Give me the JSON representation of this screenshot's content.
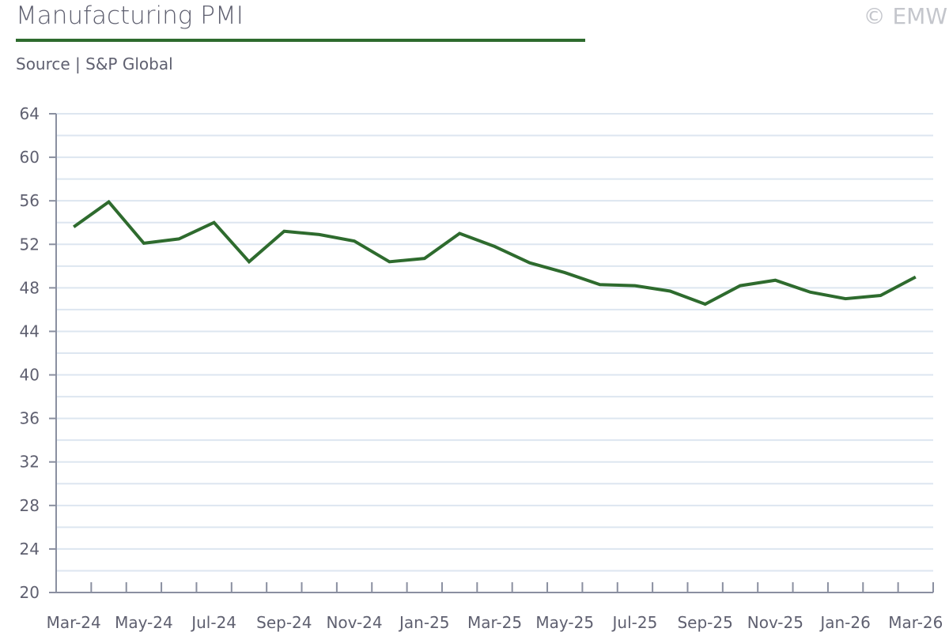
{
  "header": {
    "title": "Manufacturing PMI",
    "source": "Source | S&P Global",
    "copyright": "© EMW"
  },
  "colors": {
    "line": "#2e6b2e",
    "grid": "#dde6f0",
    "axis": "#8a8fa0"
  },
  "chart_data": {
    "type": "line",
    "title": "Manufacturing PMI",
    "xlabel": "",
    "ylabel": "",
    "ylim": [
      20,
      64
    ],
    "yticks": [
      20,
      24,
      28,
      32,
      36,
      40,
      44,
      48,
      52,
      56,
      60,
      64
    ],
    "grid": true,
    "x": [
      "Mar-24",
      "Apr-24",
      "May-24",
      "Jun-24",
      "Jul-24",
      "Aug-24",
      "Sep-24",
      "Oct-24",
      "Nov-24",
      "Dec-24",
      "Jan-25",
      "Feb-25",
      "Mar-25",
      "Apr-25",
      "May-25",
      "Jun-25",
      "Jul-25",
      "Aug-25",
      "Sep-25",
      "Oct-25",
      "Nov-25",
      "Dec-25",
      "Jan-26",
      "Feb-26",
      "Mar-26"
    ],
    "xtick_labels": [
      "Mar-24",
      "May-24",
      "Jul-24",
      "Sep-24",
      "Nov-24",
      "Jan-25",
      "Mar-25",
      "May-25",
      "Jul-25",
      "Sep-25",
      "Nov-25",
      "Jan-26",
      "Mar-26"
    ],
    "series": [
      {
        "name": "Manufacturing PMI",
        "values": [
          53.6,
          55.9,
          52.1,
          52.5,
          54.0,
          50.4,
          53.2,
          52.9,
          52.3,
          50.4,
          50.7,
          53.0,
          51.8,
          50.3,
          49.4,
          48.3,
          48.2,
          47.7,
          46.5,
          48.2,
          48.7,
          47.6,
          47.0,
          47.3,
          49.0
        ]
      }
    ]
  }
}
